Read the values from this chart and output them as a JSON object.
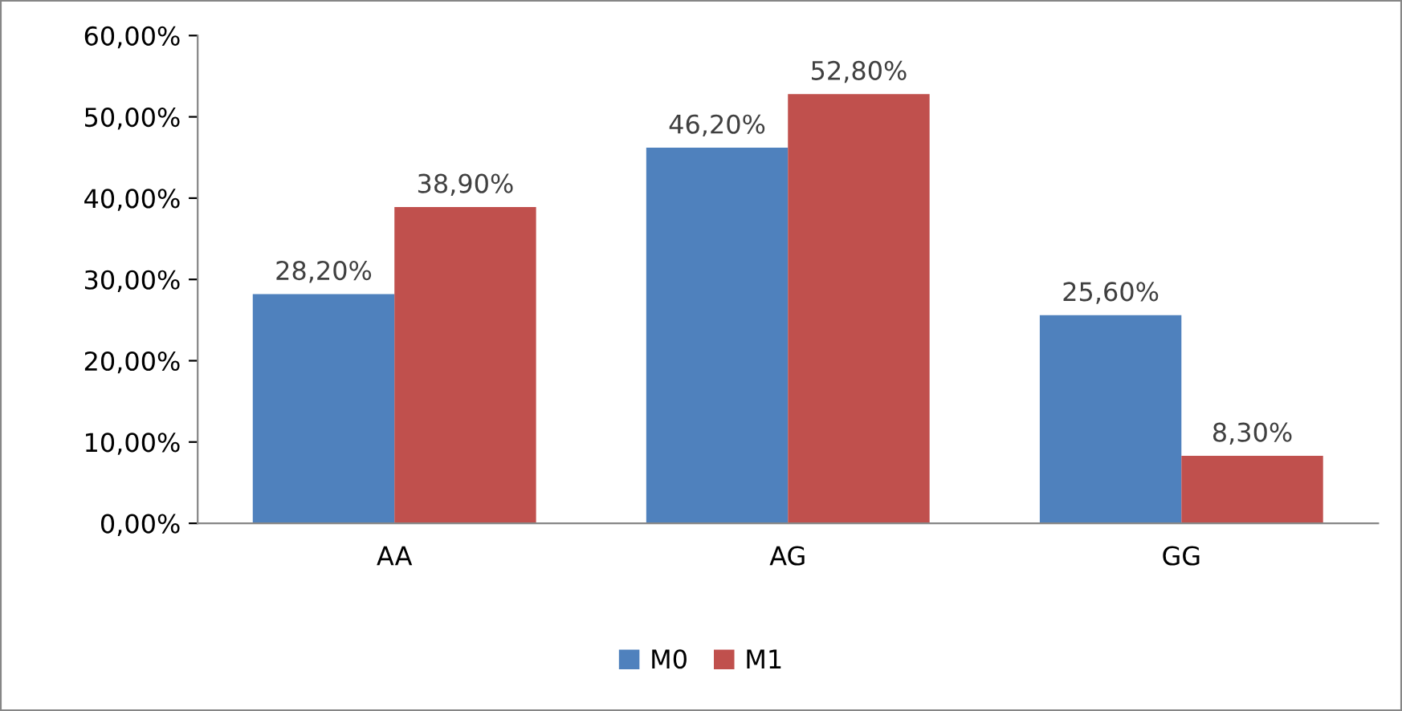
{
  "chart_data": {
    "type": "bar",
    "categories": [
      "AA",
      "AG",
      "GG"
    ],
    "series": [
      {
        "name": "M0",
        "color": "#4f81bd",
        "values": [
          28.2,
          46.2,
          25.6
        ],
        "value_labels": [
          "28,20%",
          "46,20%",
          "25,60%"
        ]
      },
      {
        "name": "M1",
        "color": "#c0504d",
        "values": [
          38.9,
          52.8,
          8.3
        ],
        "value_labels": [
          "38,90%",
          "52,80%",
          "8,30%"
        ]
      }
    ],
    "ylim": [
      0,
      60
    ],
    "yticks": [
      {
        "value": 0,
        "label": "0,00%"
      },
      {
        "value": 10,
        "label": "10,00%"
      },
      {
        "value": 20,
        "label": "20,00%"
      },
      {
        "value": 30,
        "label": "30,00%"
      },
      {
        "value": 40,
        "label": "40,00%"
      },
      {
        "value": 50,
        "label": "50,00%"
      },
      {
        "value": 60,
        "label": "60,00%"
      }
    ],
    "grid": false,
    "legend": "bottom"
  }
}
